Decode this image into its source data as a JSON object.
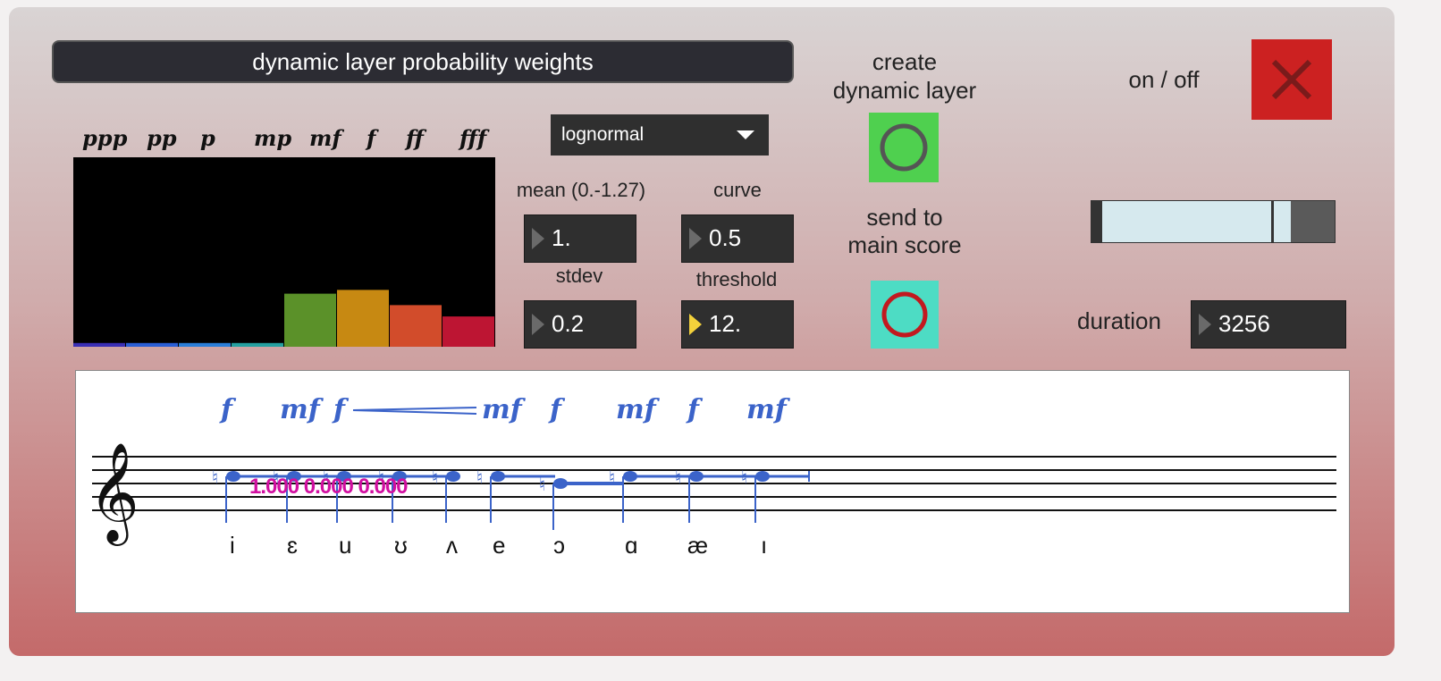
{
  "header": {
    "title": "dynamic layer probability weights"
  },
  "dynamics_labels": [
    "ppp",
    "pp",
    "p",
    "mp",
    "mf",
    "f",
    "ff",
    "fff"
  ],
  "histogram": {
    "values": [
      0.02,
      0.02,
      0.02,
      0.02,
      0.28,
      0.3,
      0.22,
      0.16
    ],
    "colors": [
      "#3a2fb5",
      "#2a5fd6",
      "#2a7ed8",
      "#24a0a0",
      "#5b9129",
      "#c78912",
      "#d24c2b",
      "#bd1533"
    ]
  },
  "distribution": {
    "selected": "lognormal"
  },
  "params": {
    "mean_label": "mean (0.-1.27)",
    "mean_value": "1.",
    "curve_label": "curve",
    "curve_value": "0.5",
    "stdev_label": "stdev",
    "stdev_value": "0.2",
    "threshold_label": "threshold",
    "threshold_value": "12."
  },
  "actions": {
    "create_label_1": "create",
    "create_label_2": "dynamic layer",
    "send_label_1": "send to",
    "send_label_2": "main score",
    "create_color": "#4fd04f",
    "send_color": "#4ddcc4"
  },
  "toggle": {
    "label": "on / off"
  },
  "slider": {
    "level": 0.82
  },
  "duration": {
    "label": "duration",
    "value": "3256"
  },
  "score": {
    "dynamics": [
      "f",
      "mf",
      "f",
      "mf",
      "f",
      "mf",
      "f",
      "mf"
    ],
    "annotation": "1.000 0.000 0.000",
    "vowels": [
      "i",
      "ɛ",
      "u",
      "ʊ",
      "ʌ",
      "e",
      "ɔ",
      "ɑ",
      "æ",
      "ı"
    ]
  }
}
